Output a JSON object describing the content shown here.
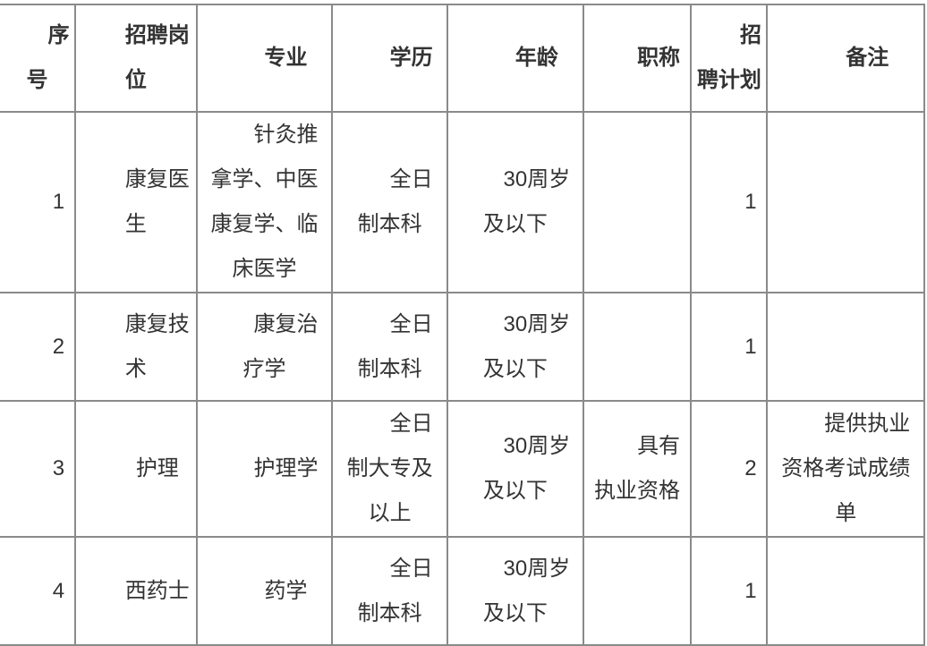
{
  "headers": [
    "序号",
    "招聘岗位",
    "专业",
    "学历",
    "年龄",
    "职称",
    "招聘计划",
    "备注"
  ],
  "rows": [
    [
      "1",
      "康复医生",
      "针灸推拿学、中医康复学、临床医学",
      "全日制本科",
      "30周岁及以下",
      "",
      "1",
      ""
    ],
    [
      "2",
      "康复技术",
      "康复治疗学",
      "全日制本科",
      "30周岁及以下",
      "",
      "1",
      ""
    ],
    [
      "3",
      "护理",
      "护理学",
      "全日制大专及以上",
      "30周岁及以下",
      "具有执业资格",
      "2",
      "提供执业资格考试成绩单"
    ],
    [
      "4",
      "西药士",
      "药学",
      "全日制本科",
      "30周岁及以下",
      "",
      "1",
      ""
    ]
  ]
}
